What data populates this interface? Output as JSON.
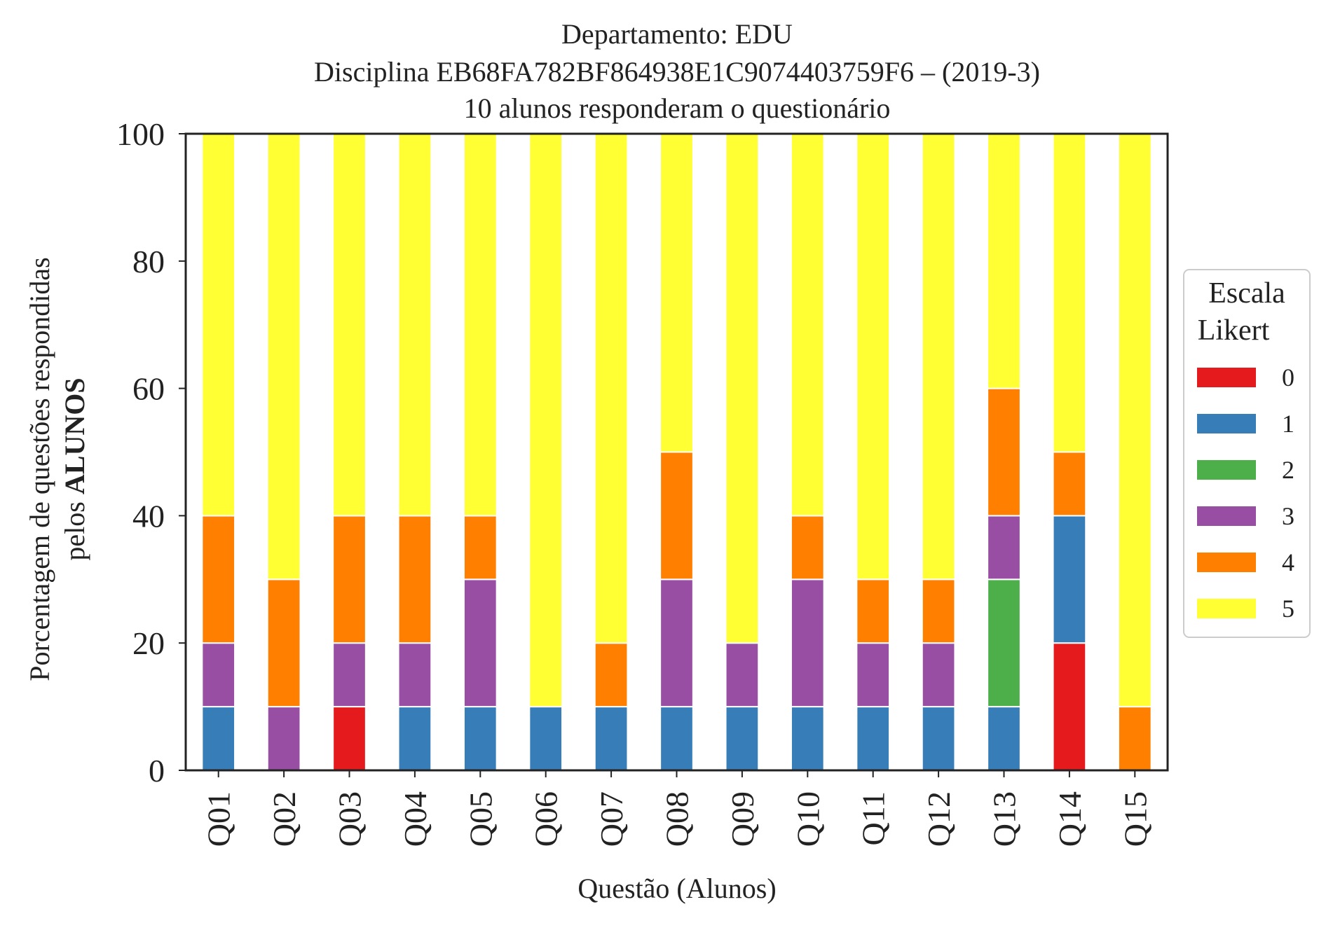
{
  "chart_data": {
    "type": "bar",
    "stacked": true,
    "title_lines": [
      "Departamento: EDU",
      "Disciplina EB68FA782BF864938E1C9074403759F6 – (2019-3)",
      "10 alunos responderam o questionário"
    ],
    "xlabel": "Questão (Alunos)",
    "ylabel_line1": "Porcentagem de questões respondidas",
    "ylabel_line2_prefix": "pelos ",
    "ylabel_line2_bold": "ALUNOS",
    "ylim": [
      0,
      100
    ],
    "yticks": [
      "0",
      "20",
      "40",
      "60",
      "80",
      "100"
    ],
    "grid": false,
    "legend_position": "right",
    "legend": {
      "title_line1": "Escala",
      "title_line2": "Likert"
    },
    "categories": [
      "Q01",
      "Q02",
      "Q03",
      "Q04",
      "Q05",
      "Q06",
      "Q07",
      "Q08",
      "Q09",
      "Q10",
      "Q11",
      "Q12",
      "Q13",
      "Q14",
      "Q15"
    ],
    "series": [
      {
        "name": "0",
        "color": "#e41a1c",
        "values": [
          0,
          0,
          10,
          0,
          0,
          0,
          0,
          0,
          0,
          0,
          0,
          0,
          0,
          20,
          0
        ]
      },
      {
        "name": "1",
        "color": "#377eb8",
        "values": [
          10,
          0,
          0,
          10,
          10,
          10,
          10,
          10,
          10,
          10,
          10,
          10,
          10,
          20,
          0
        ]
      },
      {
        "name": "2",
        "color": "#4daf4a",
        "values": [
          0,
          0,
          0,
          0,
          0,
          0,
          0,
          0,
          0,
          0,
          0,
          0,
          20,
          0,
          0
        ]
      },
      {
        "name": "3",
        "color": "#984ea3",
        "values": [
          10,
          10,
          10,
          10,
          20,
          0,
          0,
          20,
          10,
          20,
          10,
          10,
          10,
          0,
          0
        ]
      },
      {
        "name": "4",
        "color": "#ff7f00",
        "values": [
          20,
          20,
          20,
          20,
          10,
          0,
          10,
          20,
          0,
          10,
          10,
          10,
          20,
          10,
          10
        ]
      },
      {
        "name": "5",
        "color": "#ffff33",
        "values": [
          60,
          70,
          60,
          60,
          60,
          90,
          80,
          50,
          80,
          60,
          70,
          70,
          40,
          50,
          90
        ]
      }
    ]
  }
}
